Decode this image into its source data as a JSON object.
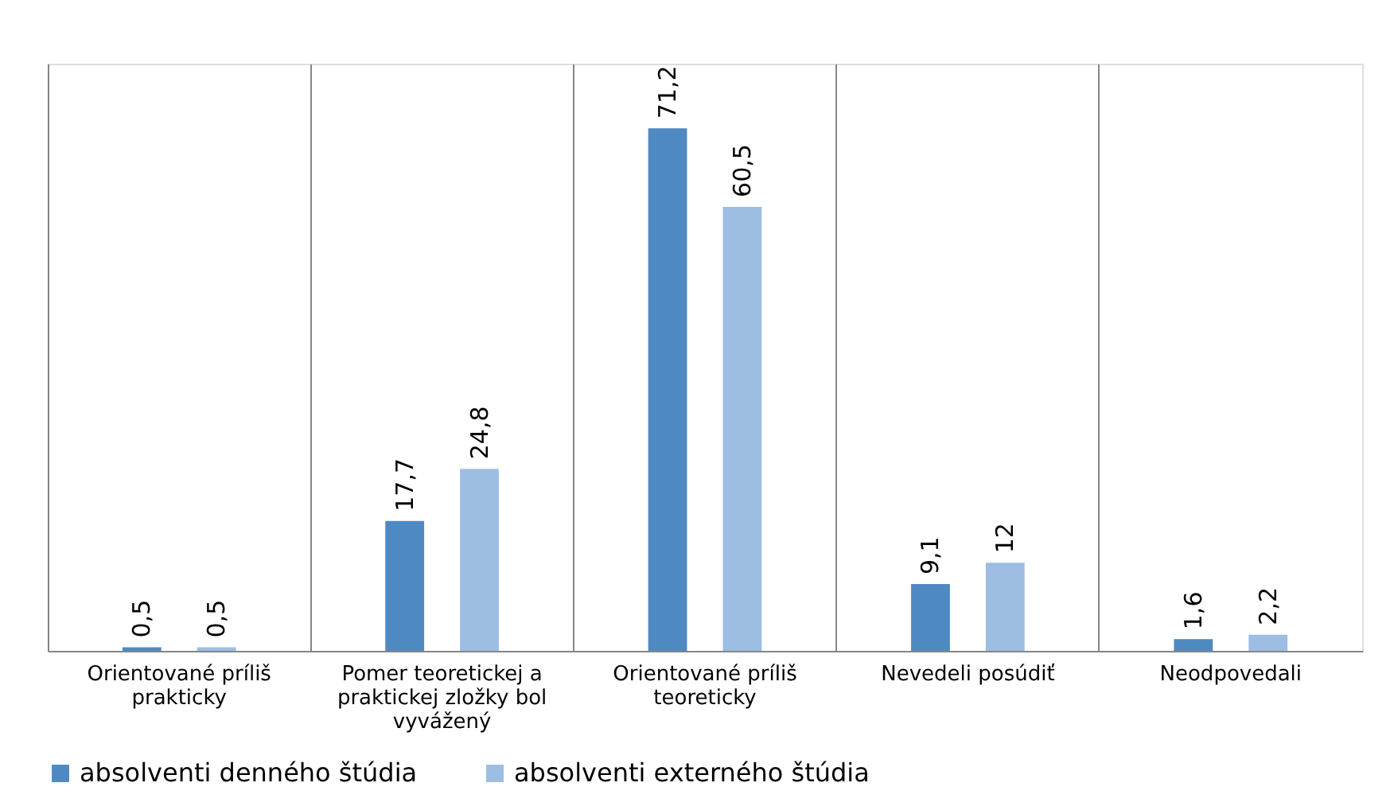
{
  "chart_data": {
    "type": "bar",
    "categories": [
      "Orientované príliš prakticky",
      "Pomer teoretickej a praktickej zložky bol vyvážený",
      "Orientované príliš teoreticky",
      "Nevedeli posúdiť",
      "Neodpovedali"
    ],
    "series": [
      {
        "name": "absolventi denného štúdia",
        "color": "#4f89c2",
        "values": [
          0.5,
          17.7,
          71.2,
          9.1,
          1.6
        ],
        "value_labels": [
          "0,5",
          "17,7",
          "71,2",
          "9,1",
          "1,6"
        ]
      },
      {
        "name": "absolventi externého štúdia",
        "color": "#9dbde3",
        "values": [
          0.5,
          24.8,
          60.5,
          12,
          2.2
        ],
        "value_labels": [
          "0,5",
          "24,8",
          "60,5",
          "12",
          "2,2"
        ]
      }
    ],
    "grid": "x",
    "legend": "bottom"
  }
}
